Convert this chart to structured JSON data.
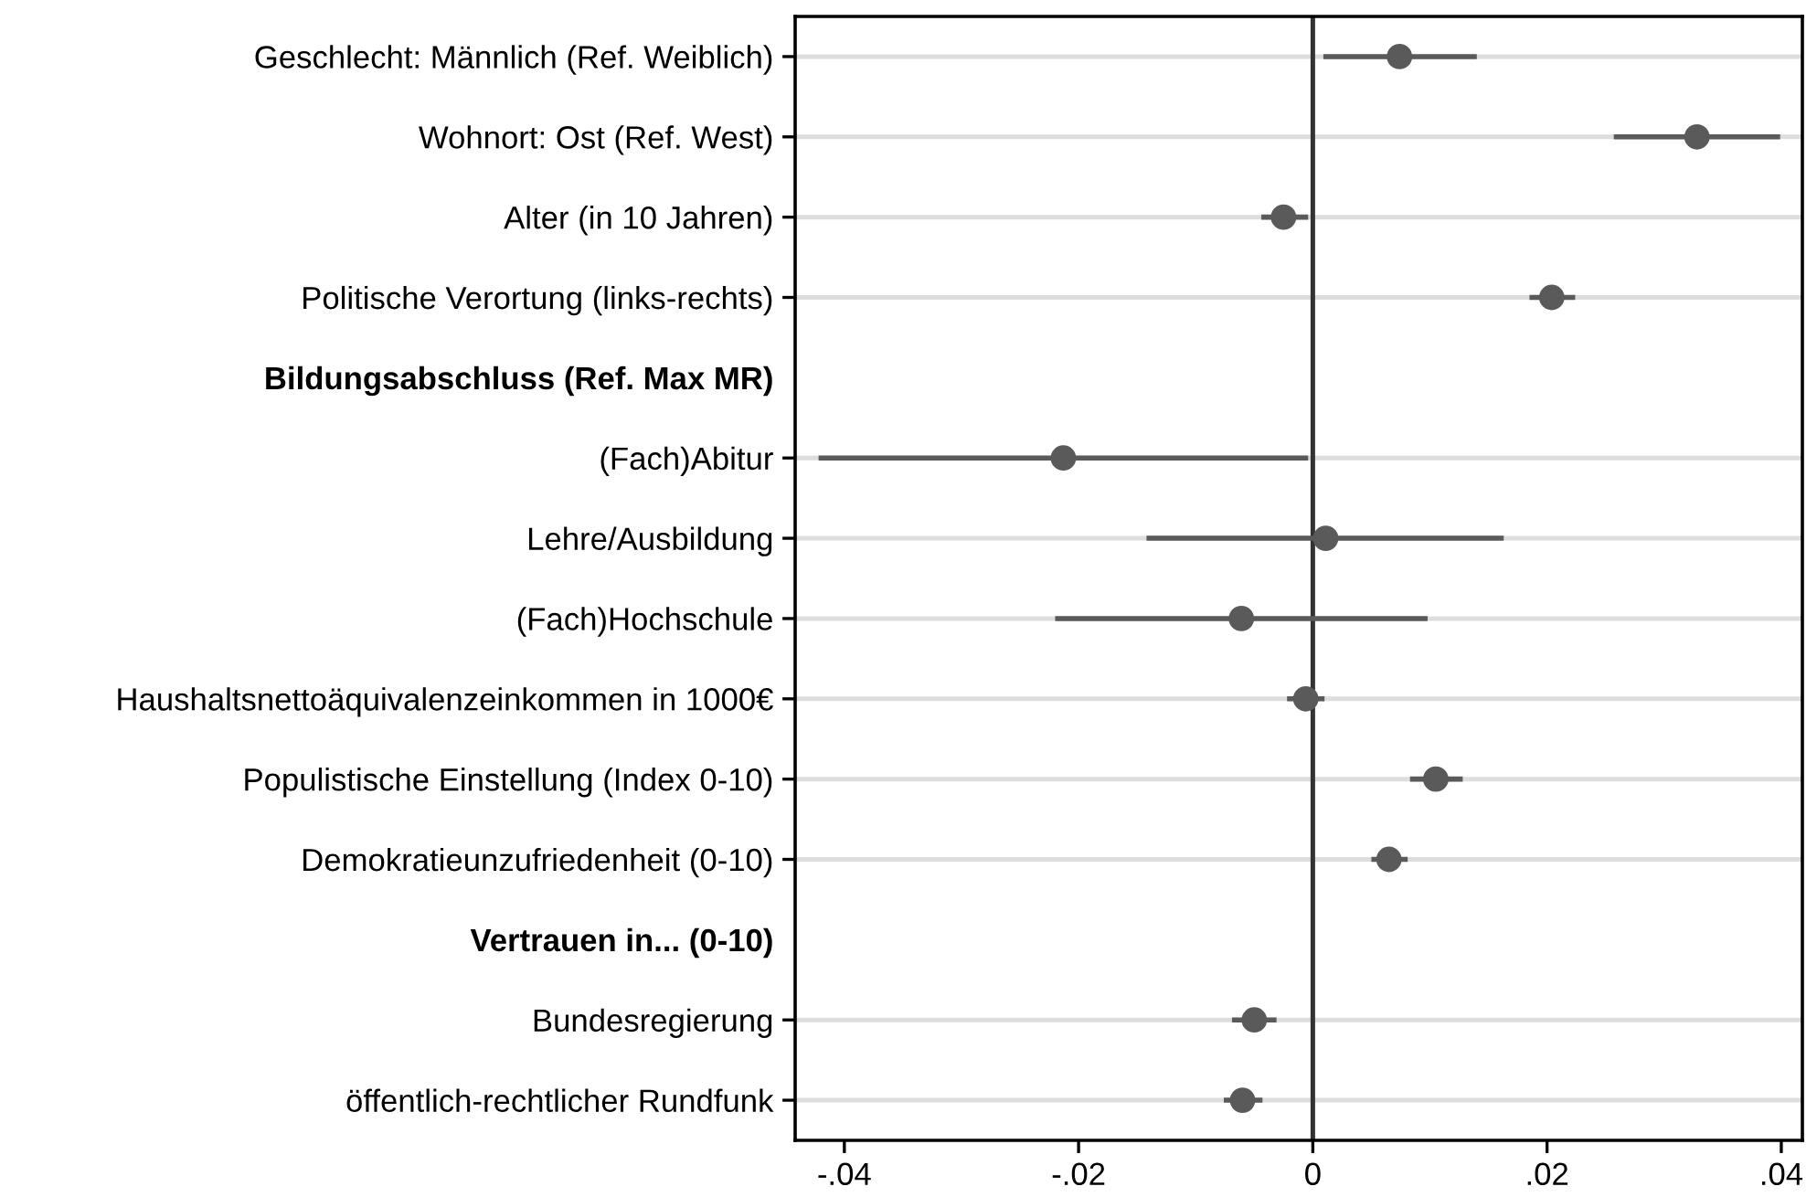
{
  "chart_data": {
    "type": "scatter",
    "orientation": "horizontal",
    "categories": [
      "Geschlecht: Männlich (Ref. Weiblich)",
      "Wohnort: Ost (Ref. West)",
      "Alter (in 10 Jahren)",
      "Politische Verortung (links-rechts)",
      "Bildungsabschluss (Ref. Max MR)",
      "(Fach)Abitur",
      "Lehre/Ausbildung",
      "(Fach)Hochschule",
      "Haushaltsnettoäquivalenzeinkommen in 1000€",
      "Populistische Einstellung (Index 0-10)",
      "Demokratieunzufriedenheit (0-10)",
      "Vertrauen in... (0-10)",
      "Bundesregierung",
      "öffentlich-rechtlicher Rundfunk"
    ],
    "values": [
      0.0074,
      0.0328,
      -0.0025,
      0.0204,
      null,
      -0.0213,
      0.0011,
      -0.0061,
      -0.0006,
      0.0105,
      0.0065,
      null,
      -0.005,
      -0.006
    ],
    "errors": [
      [
        0.0009,
        0.014
      ],
      [
        0.0257,
        0.0399
      ],
      [
        -0.0044,
        -0.0004
      ],
      [
        0.0185,
        0.0224
      ],
      null,
      [
        -0.0422,
        -0.0004
      ],
      [
        -0.0142,
        0.0163
      ],
      [
        -0.022,
        0.0098
      ],
      [
        -0.0022,
        0.001
      ],
      [
        0.0083,
        0.0128
      ],
      [
        0.005,
        0.0081
      ],
      null,
      [
        -0.0069,
        -0.0031
      ],
      [
        -0.0076,
        -0.0043
      ]
    ],
    "color": "#5a5a5a",
    "marker": "circle",
    "grid": "y",
    "xlim": [
      -0.0442,
      0.0418
    ],
    "xticks": [
      {
        "value": -0.04,
        "label": "-.04"
      },
      {
        "value": -0.02,
        "label": "-.02"
      },
      0,
      {
        "value": 0.02,
        "label": ".02"
      },
      {
        "value": 0.04,
        "label": ".04"
      }
    ],
    "ref_lines": [
      {
        "axis": "x",
        "value": 0,
        "color": "#333333"
      }
    ]
  }
}
